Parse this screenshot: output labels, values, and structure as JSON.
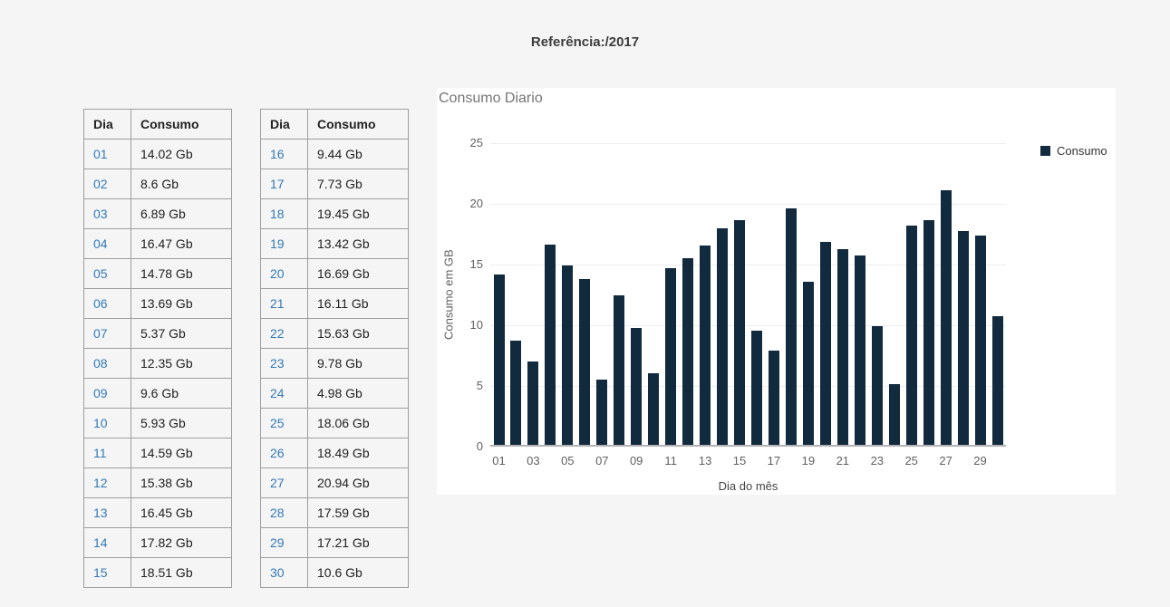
{
  "page": {
    "title": "Referência:/2017"
  },
  "tables": [
    {
      "headers": {
        "dia": "Dia",
        "consumo": "Consumo"
      },
      "rows": [
        [
          "01",
          "14.02 Gb"
        ],
        [
          "02",
          "8.6 Gb"
        ],
        [
          "03",
          "6.89 Gb"
        ],
        [
          "04",
          "16.47 Gb"
        ],
        [
          "05",
          "14.78 Gb"
        ],
        [
          "06",
          "13.69 Gb"
        ],
        [
          "07",
          "5.37 Gb"
        ],
        [
          "08",
          "12.35 Gb"
        ],
        [
          "09",
          "9.6 Gb"
        ],
        [
          "10",
          "5.93 Gb"
        ],
        [
          "11",
          "14.59 Gb"
        ],
        [
          "12",
          "15.38 Gb"
        ],
        [
          "13",
          "16.45 Gb"
        ],
        [
          "14",
          "17.82 Gb"
        ],
        [
          "15",
          "18.51 Gb"
        ]
      ]
    },
    {
      "headers": {
        "dia": "Dia",
        "consumo": "Consumo"
      },
      "rows": [
        [
          "16",
          "9.44 Gb"
        ],
        [
          "17",
          "7.73 Gb"
        ],
        [
          "18",
          "19.45 Gb"
        ],
        [
          "19",
          "13.42 Gb"
        ],
        [
          "20",
          "16.69 Gb"
        ],
        [
          "21",
          "16.11 Gb"
        ],
        [
          "22",
          "15.63 Gb"
        ],
        [
          "23",
          "9.78 Gb"
        ],
        [
          "24",
          "4.98 Gb"
        ],
        [
          "25",
          "18.06 Gb"
        ],
        [
          "26",
          "18.49 Gb"
        ],
        [
          "27",
          "20.94 Gb"
        ],
        [
          "28",
          "17.59 Gb"
        ],
        [
          "29",
          "17.21 Gb"
        ],
        [
          "30",
          "10.6 Gb"
        ]
      ]
    }
  ],
  "chart_data": {
    "type": "bar",
    "title": "Consumo Diario",
    "xlabel": "Dia do mês",
    "ylabel": "Consumo em GB",
    "legend": [
      "Consumo"
    ],
    "legend_position": "top-right",
    "categories": [
      "01",
      "02",
      "03",
      "04",
      "05",
      "06",
      "07",
      "08",
      "09",
      "10",
      "11",
      "12",
      "13",
      "14",
      "15",
      "16",
      "17",
      "18",
      "19",
      "20",
      "21",
      "22",
      "23",
      "24",
      "25",
      "26",
      "27",
      "28",
      "29",
      "30"
    ],
    "values": [
      14.02,
      8.6,
      6.89,
      16.47,
      14.78,
      13.69,
      5.37,
      12.35,
      9.6,
      5.93,
      14.59,
      15.38,
      16.45,
      17.82,
      18.51,
      9.44,
      7.73,
      19.45,
      13.42,
      16.69,
      16.11,
      15.63,
      9.78,
      4.98,
      18.06,
      18.49,
      20.94,
      17.59,
      17.21,
      10.6
    ],
    "ylim": [
      0,
      25
    ],
    "y_ticks": [
      0,
      5,
      10,
      15,
      20,
      25
    ],
    "x_tick_labels": [
      "01",
      "03",
      "05",
      "07",
      "09",
      "11",
      "13",
      "15",
      "17",
      "19",
      "21",
      "23",
      "25",
      "27",
      "29"
    ],
    "grid": true,
    "bar_color": "#122a3e"
  },
  "colors": {
    "page_background": "#f5f5f5",
    "card_background": "#ffffff",
    "bar": "#122a3e",
    "day_link": "#337ab7",
    "table_border": "#9e9e9e",
    "grid_line": "#ededed",
    "axis_line": "#b3b3b3"
  }
}
